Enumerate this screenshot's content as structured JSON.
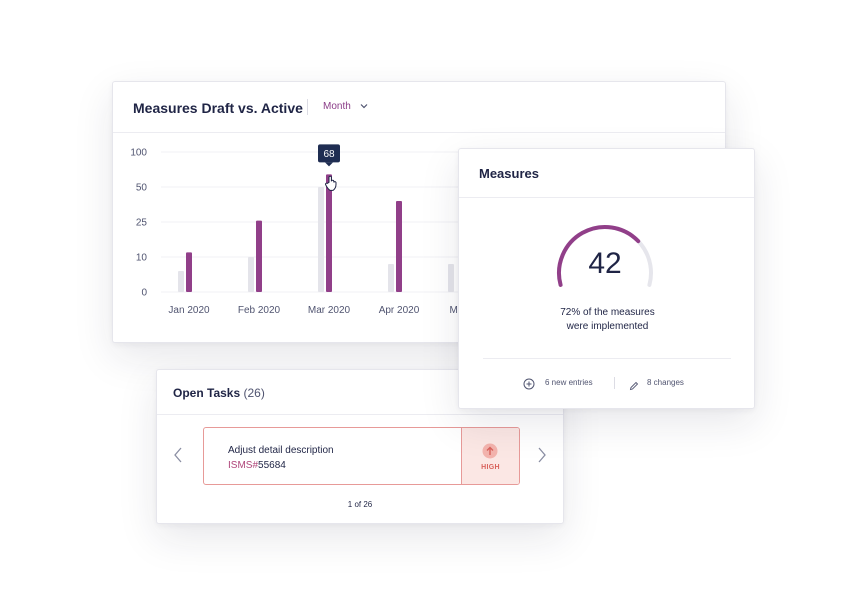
{
  "chart_card": {
    "title": "Measures Draft vs. Active",
    "period_label": "Month",
    "tooltip_value": "68"
  },
  "chart_data": {
    "type": "bar",
    "categories": [
      "Jan 2020",
      "Feb 2020",
      "Mar 2020",
      "Apr 2020",
      "May"
    ],
    "y_ticks": [
      "100",
      "50",
      "25",
      "10",
      "0"
    ],
    "y_tick_values": [
      100,
      50,
      25,
      10,
      0
    ],
    "series": [
      {
        "values": [
          6,
          10,
          50,
          8,
          8
        ],
        "color": "#e4e4ea"
      },
      {
        "values": [
          12,
          26,
          68,
          40,
          null
        ],
        "color": "#913f89"
      }
    ],
    "highlighted_point": {
      "category": "Mar 2020",
      "value": 68
    },
    "grid": true,
    "legend": "none"
  },
  "measures_card": {
    "title": "Measures",
    "gauge_value": "42",
    "gauge_percent": 72,
    "caption_line1": "72% of the measures",
    "caption_line2": "were implemented",
    "new_entries": "6 new entries",
    "changes": "8 changes"
  },
  "tasks_card": {
    "title": "Open Tasks",
    "count": "(26)",
    "task": {
      "name": "Adjust detail description",
      "id_prefix": "ISMS#",
      "id_number": "55684",
      "priority": "HIGH"
    },
    "pagination": "1 of 26"
  },
  "colors": {
    "accent": "#913f89",
    "draft": "#e4e4ea",
    "high_priority": "#d9625c",
    "high_priority_bg": "#fbe7e4",
    "text_dark": "#1f2445",
    "tooltip_bg": "#1f2d52"
  },
  "icons": {
    "period_chevron": "chevron-down-icon",
    "cursor": "hand-pointer-icon",
    "new_entries": "plus-circle-icon",
    "changes": "pencil-icon",
    "prev": "chevron-left-icon",
    "next": "chevron-right-icon",
    "priority": "arrow-up-icon"
  }
}
